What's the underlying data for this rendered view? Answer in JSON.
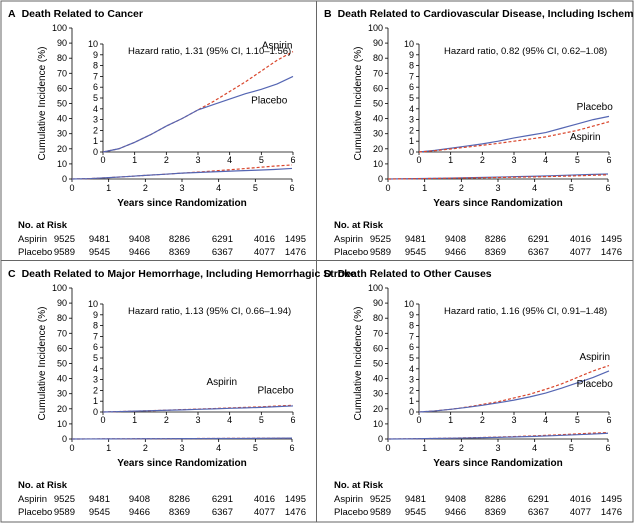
{
  "colors": {
    "aspirin": "#d9452b",
    "placebo": "#5566b3",
    "frame": "#000000"
  },
  "common": {
    "xlabel": "Years since Randomization",
    "ylabel": "Cumulative Incidence (%)",
    "risk_header": "No. at Risk",
    "risk_groups": [
      "Aspirin",
      "Placebo"
    ],
    "risk_values": [
      [
        "9525",
        "9481",
        "9408",
        "8286",
        "6291",
        "4016",
        "1495"
      ],
      [
        "9589",
        "9545",
        "9466",
        "8369",
        "6367",
        "4077",
        "1476"
      ]
    ]
  },
  "chart_data": [
    {
      "type": "line",
      "panel": "A",
      "title": "Death Related to Cancer",
      "xlabel": "Years since Randomization",
      "ylabel": "Cumulative Incidence (%)",
      "main_xlim": [
        0,
        6
      ],
      "main_ylim": [
        0,
        100
      ],
      "main_yticks": [
        0,
        10,
        20,
        30,
        40,
        50,
        60,
        70,
        80,
        90,
        100
      ],
      "inset_xlim": [
        0,
        6
      ],
      "inset_ylim": [
        0,
        10
      ],
      "inset_yticks": [
        0,
        1,
        2,
        3,
        4,
        5,
        6,
        7,
        8,
        9,
        10
      ],
      "xticks": [
        0,
        1,
        2,
        3,
        4,
        5,
        6
      ],
      "annotation": "Hazard ratio, 1.31 (95% CI, 1.10–1.56)",
      "series": [
        {
          "name": "Aspirin",
          "style": "dashed",
          "x": [
            0,
            0.5,
            1,
            1.5,
            2,
            2.5,
            3,
            3.5,
            4,
            4.5,
            5,
            5.5,
            6
          ],
          "y": [
            0,
            0.3,
            0.9,
            1.6,
            2.4,
            3.1,
            3.9,
            4.7,
            5.6,
            6.5,
            7.5,
            8.5,
            9.3
          ]
        },
        {
          "name": "Placebo",
          "style": "solid",
          "x": [
            0,
            0.5,
            1,
            1.5,
            2,
            2.5,
            3,
            3.5,
            4,
            4.5,
            5,
            5.5,
            6
          ],
          "y": [
            0,
            0.3,
            0.9,
            1.6,
            2.4,
            3.1,
            3.9,
            4.4,
            4.9,
            5.4,
            5.8,
            6.3,
            7.0
          ]
        }
      ],
      "series_labels": [
        {
          "text": "Aspirin",
          "x": 5.5,
          "y": 9.6
        },
        {
          "text": "Placebo",
          "x": 5.25,
          "y": 4.5
        }
      ]
    },
    {
      "type": "line",
      "panel": "B",
      "title": "Death Related to Cardiovascular Disease, Including Ischemic Stroke",
      "xlabel": "Years since Randomization",
      "ylabel": "Cumulative Incidence (%)",
      "main_xlim": [
        0,
        6
      ],
      "main_ylim": [
        0,
        100
      ],
      "main_yticks": [
        0,
        10,
        20,
        30,
        40,
        50,
        60,
        70,
        80,
        90,
        100
      ],
      "inset_xlim": [
        0,
        6
      ],
      "inset_ylim": [
        0,
        10
      ],
      "inset_yticks": [
        0,
        1,
        2,
        3,
        4,
        5,
        6,
        7,
        8,
        9,
        10
      ],
      "xticks": [
        0,
        1,
        2,
        3,
        4,
        5,
        6
      ],
      "annotation": "Hazard ratio, 0.82 (95% CI, 0.62–1.08)",
      "series": [
        {
          "name": "Placebo",
          "style": "solid",
          "x": [
            0,
            0.5,
            1,
            1.5,
            2,
            2.5,
            3,
            3.5,
            4,
            4.5,
            5,
            5.5,
            6
          ],
          "y": [
            0,
            0.15,
            0.35,
            0.55,
            0.75,
            1.0,
            1.3,
            1.55,
            1.8,
            2.2,
            2.6,
            3.0,
            3.3
          ]
        },
        {
          "name": "Aspirin",
          "style": "dashed",
          "x": [
            0,
            0.5,
            1,
            1.5,
            2,
            2.5,
            3,
            3.5,
            4,
            4.5,
            5,
            5.5,
            6
          ],
          "y": [
            0,
            0.12,
            0.28,
            0.45,
            0.62,
            0.8,
            1.0,
            1.2,
            1.4,
            1.7,
            2.0,
            2.4,
            2.8
          ]
        }
      ],
      "series_labels": [
        {
          "text": "Placebo",
          "x": 5.55,
          "y": 3.9
        },
        {
          "text": "Aspirin",
          "x": 5.25,
          "y": 1.1
        }
      ]
    },
    {
      "type": "line",
      "panel": "C",
      "title": "Death Related to Major Hemorrhage, Including Hemorrhagic Stroke",
      "xlabel": "Years since Randomization",
      "ylabel": "Cumulative Incidence (%)",
      "main_xlim": [
        0,
        6
      ],
      "main_ylim": [
        0,
        100
      ],
      "main_yticks": [
        0,
        10,
        20,
        30,
        40,
        50,
        60,
        70,
        80,
        90,
        100
      ],
      "inset_xlim": [
        0,
        6
      ],
      "inset_ylim": [
        0,
        10
      ],
      "inset_yticks": [
        0,
        1,
        2,
        3,
        4,
        5,
        6,
        7,
        8,
        9,
        10
      ],
      "xticks": [
        0,
        1,
        2,
        3,
        4,
        5,
        6
      ],
      "annotation": "Hazard ratio, 1.13 (95% CI, 0.66–1.94)",
      "series": [
        {
          "name": "Aspirin",
          "style": "dashed",
          "x": [
            0,
            0.5,
            1,
            1.5,
            2,
            2.5,
            3,
            3.5,
            4,
            4.5,
            5,
            5.5,
            6
          ],
          "y": [
            0,
            0.04,
            0.08,
            0.12,
            0.17,
            0.22,
            0.27,
            0.32,
            0.38,
            0.43,
            0.48,
            0.55,
            0.62
          ]
        },
        {
          "name": "Placebo",
          "style": "solid",
          "x": [
            0,
            0.5,
            1,
            1.5,
            2,
            2.5,
            3,
            3.5,
            4,
            4.5,
            5,
            5.5,
            6
          ],
          "y": [
            0,
            0.04,
            0.08,
            0.12,
            0.16,
            0.2,
            0.25,
            0.29,
            0.34,
            0.38,
            0.43,
            0.5,
            0.56
          ]
        }
      ],
      "series_labels": [
        {
          "text": "Aspirin",
          "x": 3.75,
          "y": 2.5
        },
        {
          "text": "Placebo",
          "x": 5.45,
          "y": 1.7
        }
      ]
    },
    {
      "type": "line",
      "panel": "D",
      "title": "Death Related to Other Causes",
      "xlabel": "Years since Randomization",
      "ylabel": "Cumulative Incidence (%)",
      "main_xlim": [
        0,
        6
      ],
      "main_ylim": [
        0,
        100
      ],
      "main_yticks": [
        0,
        10,
        20,
        30,
        40,
        50,
        60,
        70,
        80,
        90,
        100
      ],
      "inset_xlim": [
        0,
        6
      ],
      "inset_ylim": [
        0,
        10
      ],
      "inset_yticks": [
        0,
        1,
        2,
        3,
        4,
        5,
        6,
        7,
        8,
        9,
        10
      ],
      "xticks": [
        0,
        1,
        2,
        3,
        4,
        5,
        6
      ],
      "annotation": "Hazard ratio, 1.16 (95% CI, 0.91–1.48)",
      "series": [
        {
          "name": "Aspirin",
          "style": "dashed",
          "x": [
            0,
            0.5,
            1,
            1.5,
            2,
            2.5,
            3,
            3.5,
            4,
            4.5,
            5,
            5.5,
            6
          ],
          "y": [
            0,
            0.1,
            0.25,
            0.45,
            0.7,
            0.95,
            1.3,
            1.65,
            2.1,
            2.6,
            3.2,
            3.8,
            4.3
          ]
        },
        {
          "name": "Placebo",
          "style": "solid",
          "x": [
            0,
            0.5,
            1,
            1.5,
            2,
            2.5,
            3,
            3.5,
            4,
            4.5,
            5,
            5.5,
            6
          ],
          "y": [
            0,
            0.1,
            0.25,
            0.42,
            0.62,
            0.85,
            1.1,
            1.4,
            1.75,
            2.2,
            2.7,
            3.2,
            3.8
          ]
        }
      ],
      "series_labels": [
        {
          "text": "Aspirin",
          "x": 5.55,
          "y": 4.8
        },
        {
          "text": "Placebo",
          "x": 5.55,
          "y": 2.3
        }
      ]
    }
  ]
}
